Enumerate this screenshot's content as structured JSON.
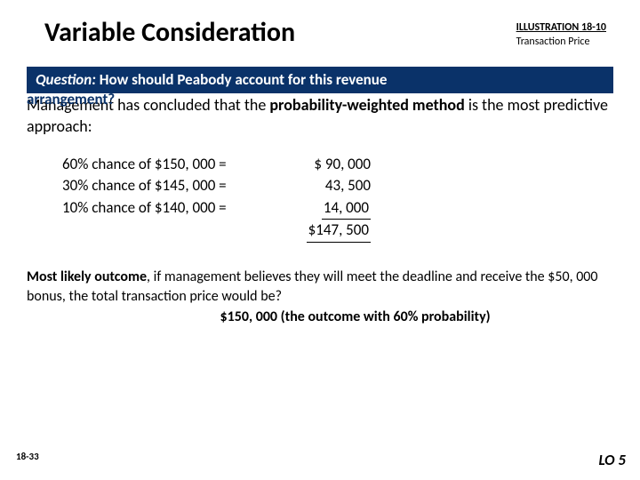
{
  "header": {
    "title": "Variable Consideration",
    "illustration_label": "ILLUSTRATION 18-10",
    "illustration_sub": "Transaction Price"
  },
  "question": {
    "lead": "Question:",
    "text": " How should Peabody account for this revenue",
    "overflow": "arrangement?"
  },
  "body": {
    "line1_pre": "Management has concluded that the ",
    "line1_bold": "probability-weighted method",
    "line1_post": " is the most predictive approach:"
  },
  "calc": {
    "rows": [
      {
        "prob": "60% chance of $150, 000 =",
        "val": "$  90, 000"
      },
      {
        "prob": "30% chance of $145, 000 =",
        "val": "43, 500"
      },
      {
        "prob": "10% chance of $140, 000 =",
        "val": "14, 000"
      }
    ],
    "total": "$147, 500"
  },
  "most_likely": {
    "lead_bold": "Most likely outcome",
    "rest": ", if management believes they will meet the deadline and receive the $50, 000 bonus, the total transaction price would be?",
    "answer": "$150, 000 (the outcome with 60% probability)"
  },
  "footer": {
    "page": "18-33",
    "lo": "LO 5"
  },
  "colors": {
    "bar_bg": "#0a3269",
    "text": "#000000",
    "bg": "#ffffff"
  }
}
